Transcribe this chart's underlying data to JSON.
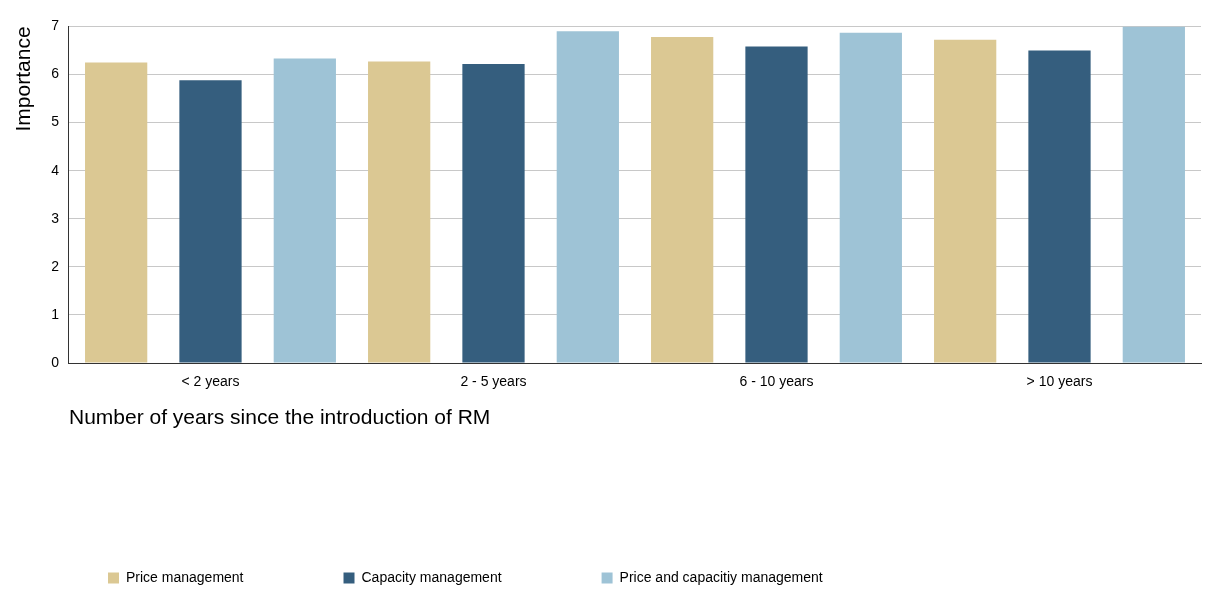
{
  "chart_data": {
    "type": "bar",
    "xlabel": "Number of years since the introduction of RM",
    "ylabel": "Importance",
    "categories": [
      "< 2 years",
      "2 - 5 years",
      "6 - 10 years",
      "> 10 years"
    ],
    "series": [
      {
        "name": "Price management",
        "color": "#dbc893",
        "values": [
          6.25,
          6.27,
          6.78,
          6.72
        ]
      },
      {
        "name": "Capacity management",
        "color": "#355e7e",
        "values": [
          5.88,
          6.22,
          6.58,
          6.5
        ]
      },
      {
        "name": "Price and capacitiy management",
        "color": "#9ec3d6",
        "values": [
          6.33,
          6.9,
          6.87,
          7.0
        ]
      }
    ],
    "ylim": [
      0,
      7
    ],
    "yticks": [
      0,
      1,
      2,
      3,
      4,
      5,
      6,
      7
    ],
    "grid": "y",
    "legend": "bottom left"
  }
}
